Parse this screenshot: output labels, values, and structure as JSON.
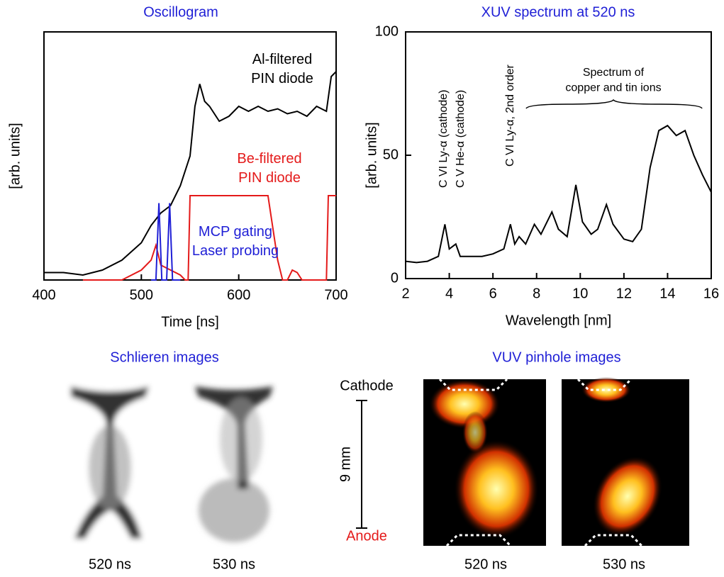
{
  "chart_data": [
    {
      "type": "line",
      "title": "Oscillogram",
      "xlabel": "Time [ns]",
      "ylabel": "[arb. units]",
      "xlim": [
        400,
        700
      ],
      "xticks": [
        400,
        500,
        600,
        700
      ],
      "ylim": [
        0,
        100
      ],
      "series": [
        {
          "name": "Al-filtered\nPIN diode",
          "color": "#000000",
          "x": [
            400,
            420,
            440,
            460,
            480,
            500,
            510,
            520,
            530,
            540,
            550,
            555,
            560,
            565,
            570,
            580,
            590,
            600,
            610,
            620,
            630,
            640,
            650,
            660,
            670,
            680,
            690,
            695,
            700
          ],
          "values": [
            3,
            3,
            2,
            4,
            8,
            15,
            22,
            27,
            30,
            38,
            50,
            70,
            79,
            72,
            70,
            64,
            66,
            70,
            68,
            70,
            68,
            69,
            67,
            68,
            66,
            70,
            68,
            82,
            84
          ]
        },
        {
          "name": "Be-filtered\nPIN diode",
          "color": "#e41a1a",
          "x": [
            440,
            480,
            500,
            510,
            515,
            520,
            530,
            540,
            545,
            548,
            550,
            560,
            600,
            630,
            640,
            645,
            650,
            655,
            660,
            665,
            690,
            692,
            700
          ],
          "values": [
            0,
            0,
            4,
            8,
            14,
            6,
            4,
            2,
            0,
            0,
            34,
            34,
            34,
            34,
            8,
            0,
            0,
            4,
            3,
            0,
            0,
            34,
            34
          ]
        },
        {
          "name": "MCP gating\nLaser probing",
          "color": "#1f1fd6",
          "x": [
            510,
            515,
            518,
            521,
            526,
            529,
            532,
            540
          ],
          "values": [
            0,
            0,
            31,
            0,
            0,
            31,
            0,
            0
          ]
        }
      ]
    },
    {
      "type": "line",
      "title": "XUV spectrum at 520 ns",
      "xlabel": "Wavelength [nm]",
      "ylabel": "[arb. units]",
      "xlim": [
        2,
        16
      ],
      "xticks": [
        2,
        4,
        6,
        8,
        10,
        12,
        14,
        16
      ],
      "ylim": [
        0,
        100
      ],
      "yticks": [
        0,
        50,
        100
      ],
      "annotations": [
        "C VI Ly-α (cathode)",
        "C V He-α (cathode)",
        "C VI Ly-α, 2nd order",
        "Spectrum of\ncopper and tin ions"
      ],
      "series": [
        {
          "color": "#000000",
          "x": [
            2,
            2.5,
            3,
            3.5,
            3.8,
            4,
            4.3,
            4.5,
            5,
            5.5,
            6,
            6.5,
            6.8,
            7,
            7.2,
            7.5,
            7.9,
            8.2,
            8.7,
            9,
            9.4,
            9.8,
            10.1,
            10.5,
            10.8,
            11.2,
            11.5,
            12,
            12.4,
            12.8,
            13.2,
            13.6,
            14,
            14.4,
            14.8,
            15.2,
            15.6,
            16
          ],
          "values": [
            7,
            6.5,
            7,
            9,
            22,
            12,
            14,
            9,
            9,
            9,
            10,
            12,
            22,
            14,
            17,
            14,
            22,
            18,
            27,
            20,
            17,
            38,
            23,
            18,
            20,
            30,
            22,
            16,
            15,
            20,
            45,
            60,
            62,
            58,
            60,
            50,
            42,
            35
          ]
        }
      ]
    }
  ],
  "images": {
    "schlieren": {
      "title": "Schlieren images",
      "labels": [
        "520 ns",
        "530 ns"
      ]
    },
    "vuv": {
      "title": "VUV pinhole images",
      "labels": [
        "520 ns",
        "530 ns"
      ],
      "cathode": "Cathode",
      "anode": "Anode",
      "scale": "9 mm"
    }
  }
}
